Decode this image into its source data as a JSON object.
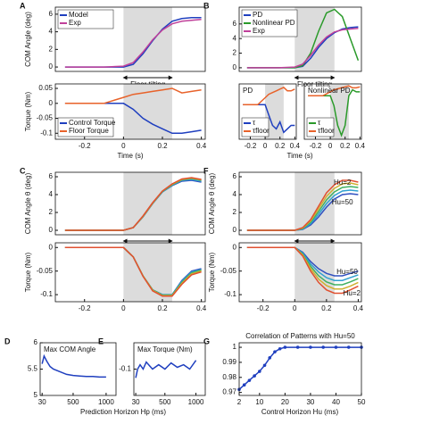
{
  "chart_data": [
    {
      "type": "line",
      "panel": "A",
      "ylabel": "COM Angle (deg)",
      "xlim": [
        -0.35,
        0.42
      ],
      "ylim": [
        -0.5,
        6.8
      ],
      "yticks": [
        0,
        2,
        4,
        6
      ],
      "shade": [
        0,
        0.25
      ],
      "arrow_label": "Floor tilting",
      "legend": "upper left",
      "x": [
        -0.3,
        -0.2,
        -0.1,
        0,
        0.05,
        0.1,
        0.15,
        0.2,
        0.25,
        0.3,
        0.35,
        0.4
      ],
      "series": [
        {
          "name": "Model",
          "color": "#1f3fbf",
          "values": [
            0,
            0,
            0,
            0,
            0.3,
            1.5,
            3,
            4.3,
            5.2,
            5.5,
            5.6,
            5.6
          ]
        },
        {
          "name": "Exp",
          "color": "#c0409a",
          "values": [
            0,
            0,
            0,
            0.1,
            0.5,
            1.7,
            3.1,
            4.2,
            4.9,
            5.2,
            5.3,
            5.4
          ]
        }
      ]
    },
    {
      "type": "line",
      "xlabel": "Time (s)",
      "ylabel": "Torque (Nm)",
      "xlim": [
        -0.35,
        0.42
      ],
      "ylim": [
        -0.12,
        0.065
      ],
      "yticks": [
        -0.1,
        -0.05,
        0,
        0.05
      ],
      "xticks": [
        -0.2,
        0,
        0.2,
        0.4
      ],
      "shade": [
        0,
        0.25
      ],
      "legend": "lower left",
      "x": [
        -0.3,
        -0.2,
        -0.1,
        0,
        0.05,
        0.1,
        0.15,
        0.2,
        0.25,
        0.3,
        0.35,
        0.4
      ],
      "series": [
        {
          "name": "Control Torque",
          "color": "#1f3fbf",
          "values": [
            0,
            0,
            0,
            0,
            -0.02,
            -0.05,
            -0.07,
            -0.085,
            -0.1,
            -0.1,
            -0.095,
            -0.09
          ]
        },
        {
          "name": "Floor Torque",
          "color": "#e8622a",
          "values": [
            0,
            0,
            0,
            0.02,
            0.03,
            0.035,
            0.04,
            0.045,
            0.05,
            0.035,
            0.04,
            0.045
          ]
        }
      ]
    },
    {
      "type": "line",
      "panel": "B",
      "xlim": [
        -0.35,
        0.42
      ],
      "ylim": [
        -0.5,
        8.3
      ],
      "yticks": [
        0,
        2,
        4,
        6
      ],
      "shade": [
        0,
        0.25
      ],
      "arrow_label": "Floor tilting",
      "legend": "upper left",
      "x": [
        -0.3,
        -0.2,
        -0.1,
        0,
        0.05,
        0.1,
        0.15,
        0.2,
        0.25,
        0.3,
        0.35,
        0.4
      ],
      "series": [
        {
          "name": "PD",
          "color": "#1f3fbf",
          "values": [
            0,
            0,
            0,
            0,
            0.2,
            1.3,
            2.8,
            4,
            4.8,
            5.3,
            5.5,
            5.6
          ]
        },
        {
          "name": "Nonlinear PD",
          "color": "#2a9a2a",
          "values": [
            0,
            0,
            0,
            0,
            0.3,
            2,
            5,
            7.5,
            8,
            7,
            4,
            1
          ]
        },
        {
          "name": "Exp",
          "color": "#c0409a",
          "values": [
            0,
            0,
            0,
            0.1,
            0.5,
            1.7,
            3.1,
            4.2,
            4.9,
            5.2,
            5.3,
            5.4
          ]
        }
      ]
    },
    {
      "type": "line",
      "title": "PD",
      "xlabel": "Time (s)",
      "xlim": [
        -0.35,
        0.42
      ],
      "ylim": [
        -0.1,
        0.06
      ],
      "xticks": [
        -0.2,
        0,
        0.2,
        0.4
      ],
      "shade": [
        0,
        0.25
      ],
      "legend": "lower left",
      "x": [
        -0.3,
        -0.2,
        -0.1,
        0,
        0.05,
        0.1,
        0.15,
        0.2,
        0.25,
        0.3,
        0.35,
        0.4
      ],
      "series": [
        {
          "name": "τ",
          "color": "#1f3fbf",
          "values": [
            0,
            0,
            0,
            0,
            -0.03,
            -0.06,
            -0.07,
            -0.05,
            -0.08,
            -0.07,
            -0.06,
            -0.06
          ]
        },
        {
          "name": "τfloor",
          "color": "#e8622a",
          "values": [
            0,
            0,
            0,
            0.02,
            0.03,
            0.035,
            0.04,
            0.045,
            0.05,
            0.04,
            0.04,
            0.045
          ]
        }
      ]
    },
    {
      "type": "line",
      "title": "Nonlinear PD",
      "xlim": [
        -0.35,
        0.42
      ],
      "ylim": [
        -0.22,
        0.06
      ],
      "xticks": [
        -0.2,
        0,
        0.2,
        0.4
      ],
      "shade": [
        0,
        0.25
      ],
      "legend": "lower left",
      "x": [
        -0.3,
        -0.2,
        -0.1,
        0,
        0.05,
        0.1,
        0.15,
        0.2,
        0.25,
        0.3,
        0.35,
        0.4
      ],
      "series": [
        {
          "name": "τ",
          "color": "#2a9a2a",
          "values": [
            0,
            0,
            0,
            0,
            -0.05,
            -0.15,
            -0.2,
            -0.15,
            0,
            0.03,
            0.02,
            0.02
          ]
        },
        {
          "name": "τfloor",
          "color": "#e8622a",
          "values": [
            0,
            0,
            0,
            0.02,
            0.03,
            0.035,
            0.04,
            0.045,
            0.05,
            0.04,
            0.04,
            0.045
          ]
        }
      ]
    },
    {
      "type": "line",
      "panel": "C",
      "ylabel": "COM Angle θ (deg)",
      "xlim": [
        -0.35,
        0.42
      ],
      "ylim": [
        -0.5,
        6.5
      ],
      "yticks": [
        0,
        2,
        4,
        6
      ],
      "shade": [
        0,
        0.25
      ],
      "arrow_label": "Floor tilting",
      "x": [
        -0.3,
        -0.2,
        -0.1,
        0,
        0.05,
        0.1,
        0.15,
        0.2,
        0.25,
        0.3,
        0.35,
        0.4
      ],
      "series": [
        {
          "color": "#3050c0",
          "values": [
            0,
            0,
            0,
            0,
            0.3,
            1.5,
            3,
            4.3,
            5,
            5.5,
            5.6,
            5.4
          ]
        },
        {
          "color": "#30a0d0",
          "values": [
            0,
            0,
            0,
            0,
            0.3,
            1.5,
            3,
            4.3,
            5.05,
            5.6,
            5.7,
            5.5
          ]
        },
        {
          "color": "#40b060",
          "values": [
            0,
            0,
            0,
            0,
            0.3,
            1.55,
            3.05,
            4.35,
            5.1,
            5.65,
            5.8,
            5.6
          ]
        },
        {
          "color": "#d0b030",
          "values": [
            0,
            0,
            0,
            0,
            0.3,
            1.55,
            3.05,
            4.4,
            5.15,
            5.7,
            5.85,
            5.65
          ]
        },
        {
          "color": "#e05030",
          "values": [
            0,
            0,
            0,
            0,
            0.3,
            1.6,
            3.1,
            4.4,
            5.2,
            5.75,
            5.9,
            5.7
          ]
        }
      ]
    },
    {
      "type": "line",
      "ylabel": "Torque (Nm)",
      "xlim": [
        -0.35,
        0.42
      ],
      "ylim": [
        -0.115,
        0.01
      ],
      "yticks": [
        -0.1,
        -0.05,
        0
      ],
      "xticks": [
        -0.2,
        0,
        0.2,
        0.4
      ],
      "shade": [
        0,
        0.25
      ],
      "x": [
        -0.3,
        -0.2,
        -0.1,
        0,
        0.05,
        0.1,
        0.15,
        0.2,
        0.25,
        0.3,
        0.35,
        0.4
      ],
      "series": [
        {
          "color": "#3050c0",
          "values": [
            0,
            0,
            0,
            0,
            -0.02,
            -0.06,
            -0.09,
            -0.1,
            -0.1,
            -0.07,
            -0.05,
            -0.045
          ]
        },
        {
          "color": "#30a0d0",
          "values": [
            0,
            0,
            0,
            0,
            -0.02,
            -0.06,
            -0.09,
            -0.1,
            -0.1,
            -0.072,
            -0.052,
            -0.047
          ]
        },
        {
          "color": "#40b060",
          "values": [
            0,
            0,
            0,
            0,
            -0.02,
            -0.06,
            -0.09,
            -0.101,
            -0.101,
            -0.074,
            -0.054,
            -0.048
          ]
        },
        {
          "color": "#d0b030",
          "values": [
            0,
            0,
            0,
            0,
            -0.02,
            -0.06,
            -0.091,
            -0.102,
            -0.102,
            -0.076,
            -0.056,
            -0.05
          ]
        },
        {
          "color": "#e05030",
          "values": [
            0,
            0,
            0,
            0,
            -0.02,
            -0.061,
            -0.092,
            -0.103,
            -0.103,
            -0.078,
            -0.058,
            -0.052
          ]
        }
      ]
    },
    {
      "type": "line",
      "panel": "F",
      "ylabel": "COM Angle θ (deg)",
      "xlim": [
        -0.35,
        0.42
      ],
      "ylim": [
        -0.5,
        6.5
      ],
      "yticks": [
        0,
        2,
        4,
        6
      ],
      "shade": [
        0,
        0.25
      ],
      "arrow_label": "Floor tilting",
      "annotations": [
        {
          "text": "Hu=2",
          "x": 0.3,
          "y": 5.3
        },
        {
          "text": "Hu=50",
          "x": 0.3,
          "y": 3.1
        }
      ],
      "x": [
        -0.3,
        -0.2,
        -0.1,
        0,
        0.05,
        0.1,
        0.15,
        0.2,
        0.25,
        0.3,
        0.35,
        0.4
      ],
      "series": [
        {
          "color": "#3050c0",
          "values": [
            0,
            0,
            0,
            0,
            0.1,
            0.6,
            1.5,
            2.6,
            3.5,
            4,
            4.1,
            4
          ]
        },
        {
          "color": "#30a0d0",
          "values": [
            0,
            0,
            0,
            0,
            0.15,
            0.75,
            1.8,
            3,
            3.9,
            4.4,
            4.5,
            4.4
          ]
        },
        {
          "color": "#40b060",
          "values": [
            0,
            0,
            0,
            0,
            0.2,
            0.9,
            2.1,
            3.4,
            4.3,
            4.8,
            4.9,
            4.8
          ]
        },
        {
          "color": "#d0b030",
          "values": [
            0,
            0,
            0,
            0,
            0.25,
            1.05,
            2.4,
            3.8,
            4.7,
            5.2,
            5.3,
            5.1
          ]
        },
        {
          "color": "#e05030",
          "values": [
            0,
            0,
            0,
            0,
            0.3,
            1.2,
            2.7,
            4.2,
            5.1,
            5.6,
            5.6,
            5.4
          ]
        }
      ]
    },
    {
      "type": "line",
      "ylabel": "Torque (Nm)",
      "xlim": [
        -0.35,
        0.42
      ],
      "ylim": [
        -0.115,
        0.01
      ],
      "yticks": [
        -0.1,
        -0.05,
        0
      ],
      "xticks": [
        -0.2,
        0,
        0.2,
        0.4
      ],
      "shade": [
        0,
        0.25
      ],
      "annotations": [
        {
          "text": "Hu=50",
          "x": 0.33,
          "y": -0.052
        },
        {
          "text": "Hu=2",
          "x": 0.36,
          "y": -0.098
        }
      ],
      "x": [
        -0.3,
        -0.2,
        -0.1,
        0,
        0.05,
        0.1,
        0.15,
        0.2,
        0.25,
        0.3,
        0.35,
        0.4
      ],
      "series": [
        {
          "color": "#3050c0",
          "values": [
            0,
            0,
            0,
            0,
            -0.01,
            -0.03,
            -0.045,
            -0.055,
            -0.06,
            -0.06,
            -0.055,
            -0.05
          ]
        },
        {
          "color": "#30a0d0",
          "values": [
            0,
            0,
            0,
            0,
            -0.012,
            -0.035,
            -0.052,
            -0.064,
            -0.07,
            -0.07,
            -0.064,
            -0.058
          ]
        },
        {
          "color": "#40b060",
          "values": [
            0,
            0,
            0,
            0,
            -0.014,
            -0.04,
            -0.06,
            -0.073,
            -0.079,
            -0.079,
            -0.073,
            -0.066
          ]
        },
        {
          "color": "#d0b030",
          "values": [
            0,
            0,
            0,
            0,
            -0.016,
            -0.045,
            -0.067,
            -0.081,
            -0.088,
            -0.088,
            -0.082,
            -0.074
          ]
        },
        {
          "color": "#e05030",
          "values": [
            0,
            0,
            0,
            0,
            -0.018,
            -0.05,
            -0.074,
            -0.09,
            -0.097,
            -0.097,
            -0.09,
            -0.082
          ]
        }
      ]
    },
    {
      "type": "line",
      "panel": "D",
      "title": "Max COM Angle",
      "xlabel": "Prediction Horizon Hp (ms)",
      "xlim": [
        0,
        1150
      ],
      "ylim": [
        5,
        6
      ],
      "yticks": [
        5,
        5.5,
        6
      ],
      "xticks": [
        30,
        500,
        1000
      ],
      "x": [
        30,
        60,
        100,
        150,
        200,
        300,
        400,
        500,
        600,
        700,
        800,
        900,
        1000
      ],
      "series": [
        {
          "color": "#1f3fbf",
          "values": [
            5.6,
            5.75,
            5.65,
            5.55,
            5.5,
            5.45,
            5.4,
            5.38,
            5.37,
            5.36,
            5.36,
            5.35,
            5.35
          ]
        }
      ]
    },
    {
      "type": "line",
      "panel": "E",
      "title": "Max Torque (Nm)",
      "xlim": [
        0,
        1150
      ],
      "ylim": [
        -0.13,
        -0.07
      ],
      "yticks": [
        -0.1
      ],
      "xticks": [
        30,
        500,
        1000
      ],
      "x": [
        30,
        60,
        100,
        150,
        200,
        300,
        400,
        500,
        600,
        700,
        800,
        900,
        1000
      ],
      "series": [
        {
          "color": "#1f3fbf",
          "values": [
            -0.11,
            -0.1,
            -0.095,
            -0.1,
            -0.092,
            -0.1,
            -0.095,
            -0.1,
            -0.093,
            -0.098,
            -0.095,
            -0.1,
            -0.09
          ]
        }
      ]
    },
    {
      "type": "line",
      "panel": "G",
      "title": "Correlation of Patterns with Hu=50",
      "xlabel": "Control Horizon Hu (ms)",
      "xlim": [
        2,
        50
      ],
      "ylim": [
        0.968,
        1.003
      ],
      "yticks": [
        0.97,
        0.98,
        0.99,
        1
      ],
      "xticks": [
        2,
        10,
        20,
        30,
        40,
        50
      ],
      "markers": true,
      "x": [
        2,
        4,
        6,
        8,
        10,
        12,
        14,
        16,
        18,
        20,
        25,
        30,
        35,
        40,
        45,
        50
      ],
      "series": [
        {
          "color": "#1f3fbf",
          "values": [
            0.972,
            0.975,
            0.978,
            0.981,
            0.984,
            0.988,
            0.993,
            0.997,
            0.999,
            1,
            1,
            1,
            1,
            1,
            1,
            1
          ]
        }
      ]
    }
  ]
}
